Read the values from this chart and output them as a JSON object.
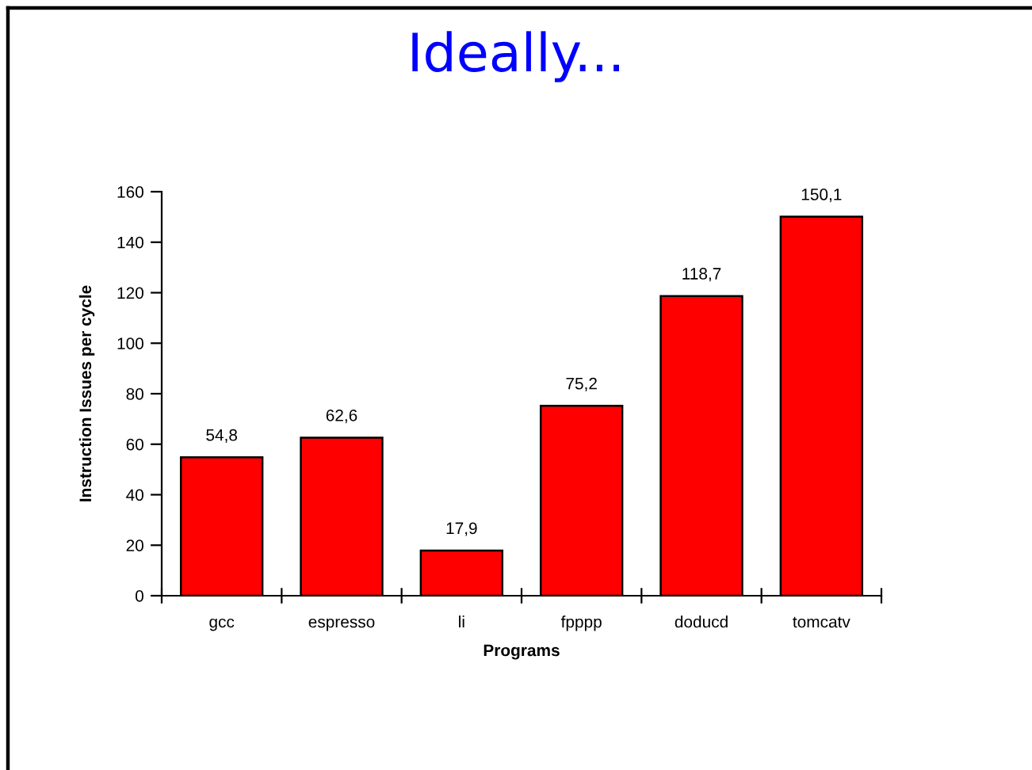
{
  "chart_data": {
    "type": "bar",
    "title": "Ideally...",
    "xlabel": "Programs",
    "ylabel": "Instruction Issues per cycle",
    "categories": [
      "gcc",
      "espresso",
      "li",
      "fpppp",
      "doducd",
      "tomcatv"
    ],
    "values": [
      54.8,
      62.6,
      17.9,
      75.2,
      118.7,
      150.1
    ],
    "value_labels": [
      "54,8",
      "62,6",
      "17,9",
      "75,2",
      "118,7",
      "150,1"
    ],
    "color": "#ff0000",
    "ylim": [
      0,
      160
    ],
    "yticks": [
      0,
      20,
      40,
      60,
      80,
      100,
      120,
      140,
      160
    ],
    "grid": false,
    "legend": false
  }
}
